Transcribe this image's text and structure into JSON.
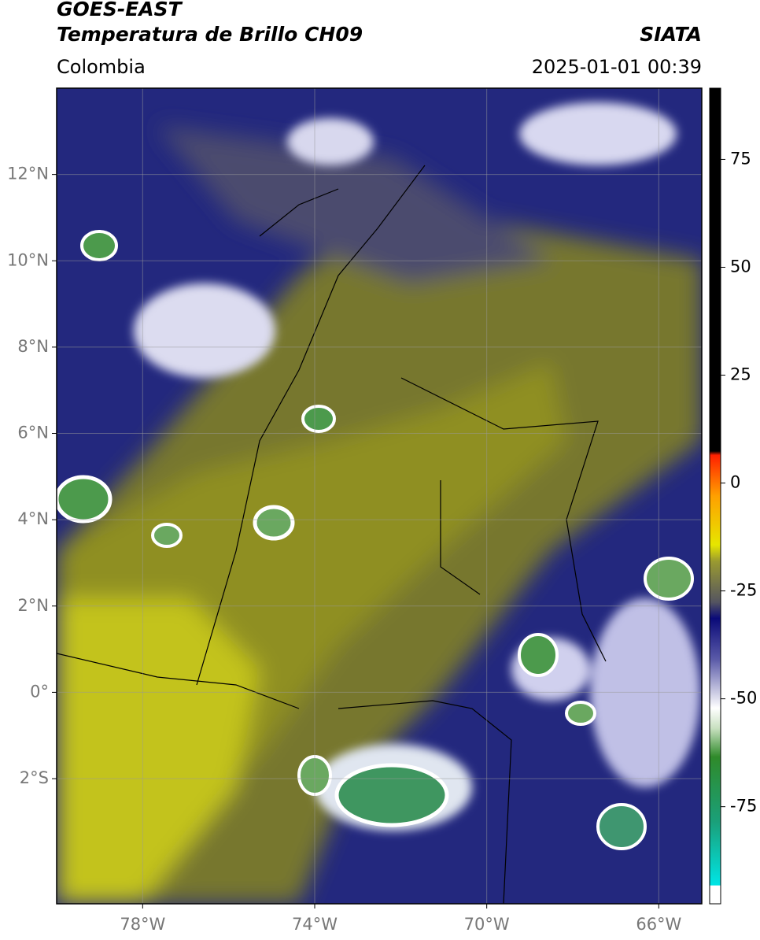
{
  "header": {
    "title": "GOES-EAST",
    "subtitle": "Temperatura de Brillo CH09",
    "source": "SIATA",
    "region": "Colombia",
    "datetime": "2025-01-01 00:39"
  },
  "map": {
    "xlim": [
      -80,
      -65
    ],
    "ylim": [
      -4.9,
      14
    ],
    "xticks": [
      {
        "value": -78,
        "label": "78°W"
      },
      {
        "value": -74,
        "label": "74°W"
      },
      {
        "value": -70,
        "label": "70°W"
      },
      {
        "value": -66,
        "label": "66°W"
      }
    ],
    "yticks": [
      {
        "value": 12,
        "label": "12°N"
      },
      {
        "value": 10,
        "label": "10°N"
      },
      {
        "value": 8,
        "label": "8°N"
      },
      {
        "value": 6,
        "label": "6°N"
      },
      {
        "value": 4,
        "label": "4°N"
      },
      {
        "value": 2,
        "label": "2°N"
      },
      {
        "value": 0,
        "label": "0°"
      },
      {
        "value": -2,
        "label": "2°S"
      }
    ],
    "grid": true
  },
  "colorbar": {
    "clim": [
      -97.5,
      91.5
    ],
    "ticks": [
      75,
      50,
      25,
      0,
      -25,
      -50,
      -75
    ]
  }
}
